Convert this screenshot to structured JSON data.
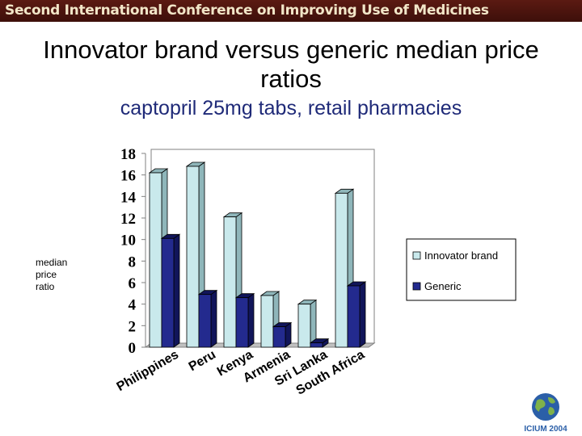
{
  "banner": "Second International Conference on Improving Use of Medicines",
  "title_line1": "Innovator brand versus generic median price",
  "title_line2": "ratios",
  "subtitle": "captopril 25mg tabs, retail pharmacies",
  "ylabel_lines": [
    "median",
    "price",
    "ratio"
  ],
  "logo_text": "ICIUM 2004",
  "colors": {
    "innovator": "#c9e9ec",
    "innovator_side": "#8fb6ba",
    "generic": "#232a8e",
    "generic_side": "#11155a",
    "subtitle": "#1f2a78",
    "banner": "#4a140d"
  },
  "chart_data": {
    "type": "bar",
    "categories": [
      "Philippines",
      "Peru",
      "Kenya",
      "Armenia",
      "Sri Lanka",
      "South Africa"
    ],
    "series": [
      {
        "name": "Innovator brand",
        "values": [
          16.2,
          16.8,
          12.1,
          4.8,
          4.0,
          14.3
        ]
      },
      {
        "name": "Generic",
        "values": [
          10.1,
          4.9,
          4.6,
          1.9,
          0.4,
          5.7
        ]
      }
    ],
    "yticks": [
      0,
      2,
      4,
      6,
      8,
      10,
      12,
      14,
      16,
      18
    ],
    "ylim": [
      0,
      18
    ],
    "legend_position": "right",
    "grid": false
  }
}
